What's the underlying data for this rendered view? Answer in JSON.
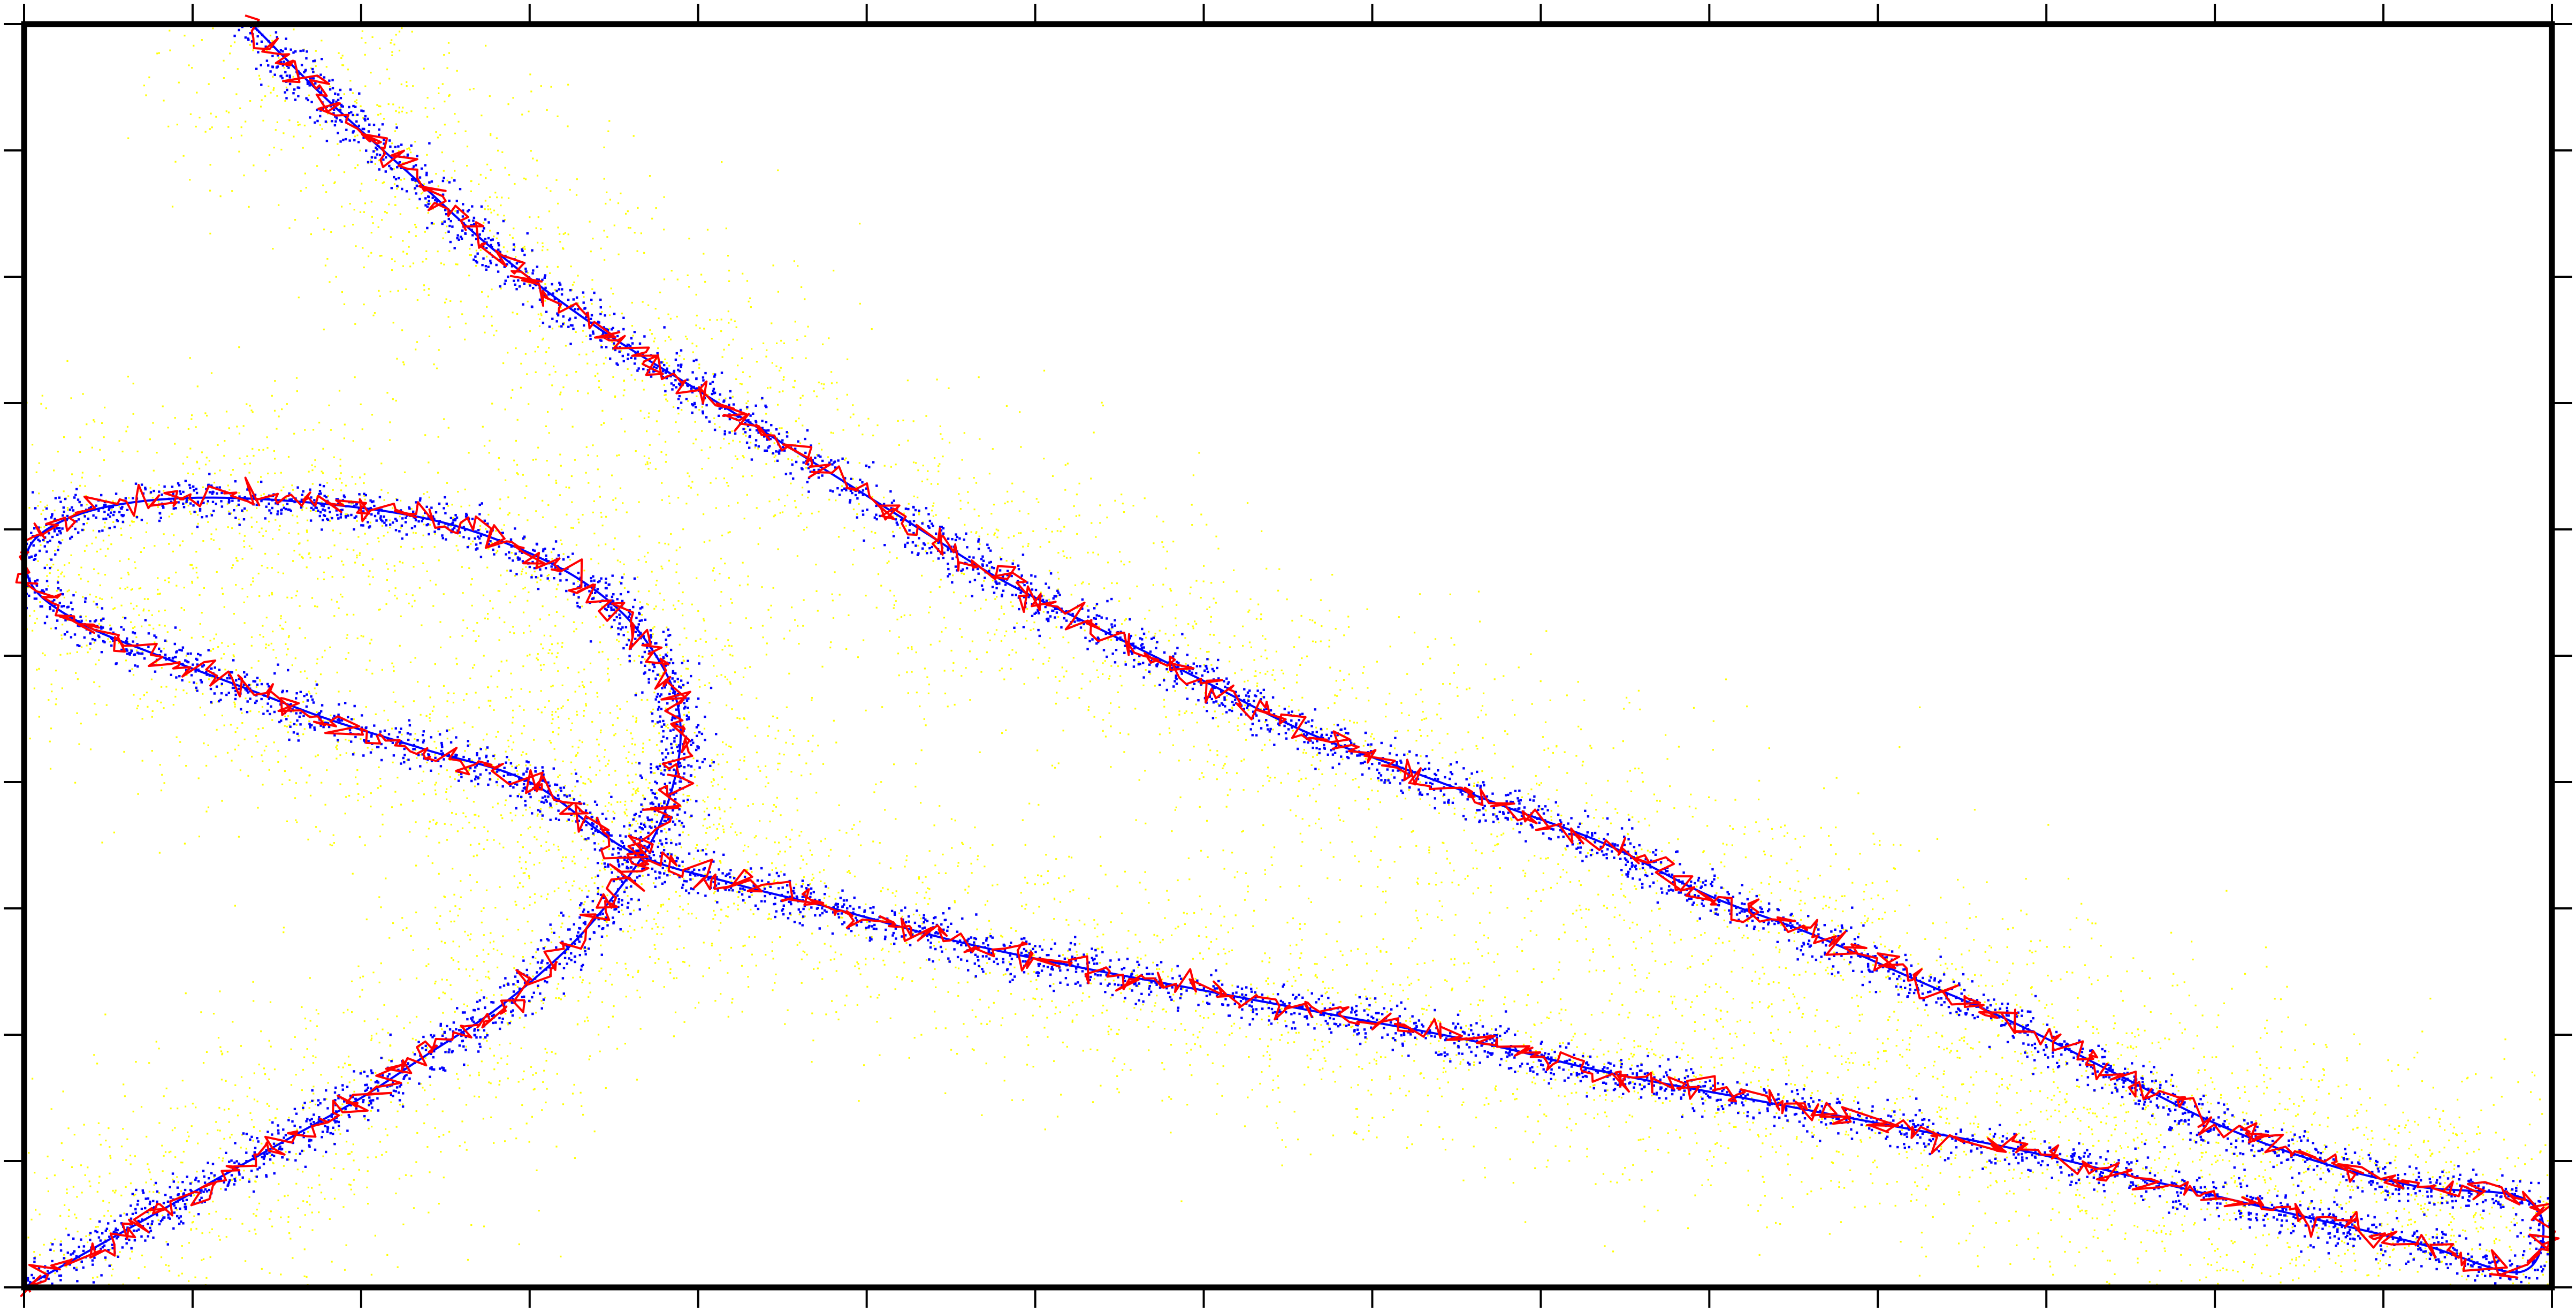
{
  "chart_data": {
    "type": "scatter",
    "title": "",
    "xlabel": "",
    "ylabel": "",
    "xlim": [
      0,
      15
    ],
    "ylim": [
      0,
      10
    ],
    "grid": false,
    "legend": "none",
    "x_ticks": [
      0,
      1,
      2,
      3,
      4,
      5,
      6,
      7,
      8,
      9,
      10,
      11,
      12,
      13,
      14,
      15
    ],
    "y_ticks": [
      0,
      1,
      2,
      3,
      4,
      5,
      6,
      7,
      8,
      9,
      10
    ],
    "colors": {
      "noise_points": "#ffff00",
      "observed_points": "#0000ff",
      "true_path": "#0000ff",
      "estimated_path": "#ff0000",
      "frame": "#000000"
    },
    "true_path": [
      [
        0.0,
        0.0
      ],
      [
        0.4,
        0.3
      ],
      [
        0.8,
        0.6
      ],
      [
        1.2,
        0.9
      ],
      [
        1.6,
        1.2
      ],
      [
        2.0,
        1.5
      ],
      [
        2.4,
        1.85
      ],
      [
        2.8,
        2.2
      ],
      [
        3.2,
        2.65
      ],
      [
        3.5,
        3.1
      ],
      [
        3.75,
        3.6
      ],
      [
        3.88,
        4.15
      ],
      [
        3.88,
        4.6
      ],
      [
        3.75,
        5.0
      ],
      [
        3.5,
        5.4
      ],
      [
        3.1,
        5.75
      ],
      [
        2.5,
        6.05
      ],
      [
        1.8,
        6.2
      ],
      [
        1.0,
        6.25
      ],
      [
        0.4,
        6.15
      ],
      [
        0.05,
        5.9
      ],
      [
        0.05,
        5.55
      ],
      [
        0.35,
        5.25
      ],
      [
        0.8,
        5.0
      ],
      [
        1.3,
        4.75
      ],
      [
        1.8,
        4.5
      ],
      [
        2.4,
        4.25
      ],
      [
        3.0,
        4.0
      ],
      [
        3.6,
        3.45
      ],
      [
        4.2,
        3.2
      ],
      [
        4.8,
        3.0
      ],
      [
        5.5,
        2.75
      ],
      [
        6.2,
        2.55
      ],
      [
        7.0,
        2.35
      ],
      [
        7.8,
        2.15
      ],
      [
        8.6,
        1.95
      ],
      [
        9.4,
        1.7
      ],
      [
        10.2,
        1.5
      ],
      [
        11.0,
        1.3
      ],
      [
        11.8,
        1.1
      ],
      [
        12.6,
        0.85
      ],
      [
        13.4,
        0.6
      ],
      [
        14.2,
        0.35
      ],
      [
        14.8,
        0.12
      ],
      [
        14.95,
        0.45
      ],
      [
        14.8,
        0.72
      ],
      [
        14.2,
        0.8
      ],
      [
        13.6,
        1.0
      ],
      [
        13.0,
        1.3
      ],
      [
        12.4,
        1.7
      ],
      [
        11.8,
        2.1
      ],
      [
        11.2,
        2.45
      ],
      [
        10.6,
        2.8
      ],
      [
        10.0,
        3.1
      ],
      [
        9.4,
        3.5
      ],
      [
        8.8,
        3.8
      ],
      [
        8.2,
        4.1
      ],
      [
        7.6,
        4.4
      ],
      [
        7.0,
        4.8
      ],
      [
        6.4,
        5.2
      ],
      [
        5.8,
        5.6
      ],
      [
        5.2,
        6.1
      ],
      [
        4.6,
        6.6
      ],
      [
        4.0,
        7.1
      ],
      [
        3.4,
        7.6
      ],
      [
        2.8,
        8.2
      ],
      [
        2.3,
        8.8
      ],
      [
        1.8,
        9.4
      ],
      [
        1.35,
        10.0
      ]
    ],
    "series": [
      {
        "name": "",
        "role": "noisy measurements",
        "color": "#ffff00",
        "spread": 0.55,
        "count": 9000
      },
      {
        "name": "",
        "role": "measurements",
        "color": "#0000ff",
        "spread": 0.09,
        "count": 7000
      },
      {
        "name": "",
        "role": "true trajectory",
        "color": "#0000ff"
      },
      {
        "name": "",
        "role": "filtered estimate",
        "color": "#ff0000",
        "jitter": 0.05
      }
    ]
  }
}
